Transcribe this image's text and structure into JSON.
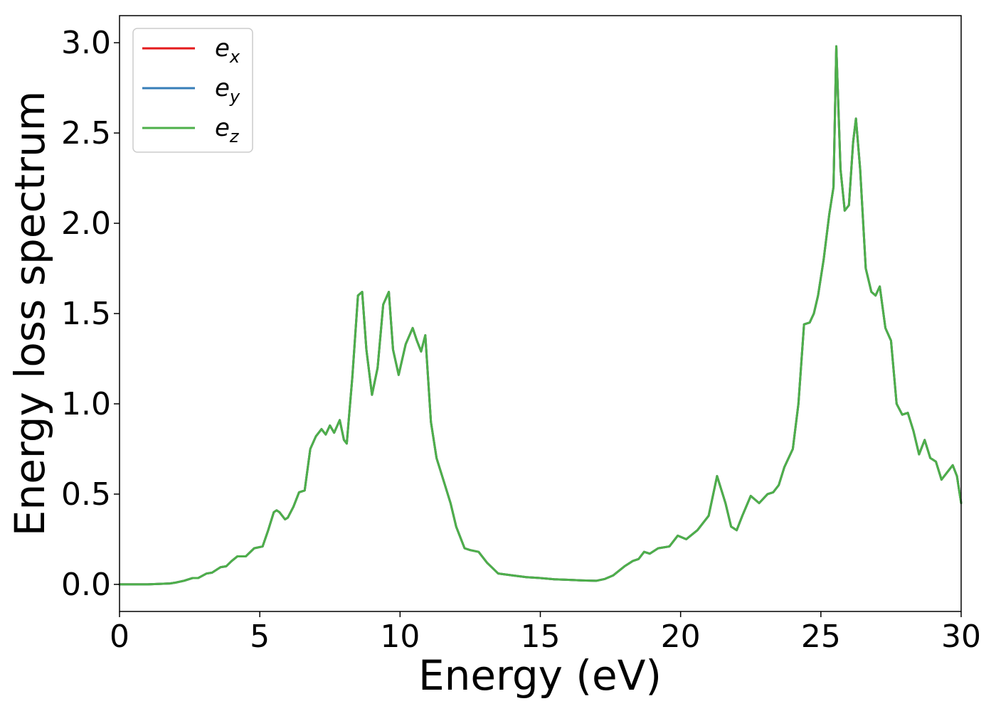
{
  "chart_data": {
    "type": "line",
    "xlabel": "Energy (eV)",
    "ylabel": "Energy loss spectrum",
    "xlim": [
      0,
      30
    ],
    "ylim": [
      -0.15,
      3.15
    ],
    "xticks": [
      0,
      5,
      10,
      15,
      20,
      25,
      30
    ],
    "yticks": [
      0.0,
      0.5,
      1.0,
      1.5,
      2.0,
      2.5,
      3.0
    ],
    "xtick_labels": [
      "0",
      "5",
      "10",
      "15",
      "20",
      "25",
      "30"
    ],
    "ytick_labels": [
      "0.0",
      "0.5",
      "1.0",
      "1.5",
      "2.0",
      "2.5",
      "3.0"
    ],
    "grid": false,
    "legend_position": "upper-left",
    "series": [
      {
        "name": "e_x",
        "label_base": "e",
        "label_sub": "x",
        "color": "#e41a1c"
      },
      {
        "name": "e_y",
        "label_base": "e",
        "label_sub": "y",
        "color": "#377eb8"
      },
      {
        "name": "e_z",
        "label_base": "e",
        "label_sub": "z",
        "color": "#4daf4a"
      }
    ],
    "x": [
      0,
      1,
      1.8,
      2.0,
      2.3,
      2.6,
      2.8,
      3.1,
      3.3,
      3.6,
      3.8,
      4.0,
      4.2,
      4.5,
      4.8,
      5.1,
      5.3,
      5.5,
      5.6,
      5.7,
      5.9,
      6.0,
      6.2,
      6.4,
      6.6,
      6.8,
      7.0,
      7.2,
      7.35,
      7.5,
      7.65,
      7.85,
      8.0,
      8.1,
      8.3,
      8.5,
      8.65,
      8.8,
      9.0,
      9.2,
      9.4,
      9.6,
      9.75,
      9.95,
      10.2,
      10.45,
      10.6,
      10.75,
      10.9,
      11.1,
      11.3,
      11.6,
      11.8,
      12.0,
      12.3,
      12.5,
      12.8,
      13.1,
      13.5,
      14.0,
      14.5,
      15.0,
      15.5,
      16.0,
      16.5,
      17.0,
      17.3,
      17.6,
      18.0,
      18.3,
      18.5,
      18.7,
      18.9,
      19.2,
      19.6,
      19.9,
      20.2,
      20.6,
      21.0,
      21.3,
      21.6,
      21.8,
      22.0,
      22.2,
      22.5,
      22.8,
      23.1,
      23.3,
      23.5,
      23.7,
      24.0,
      24.2,
      24.4,
      24.6,
      24.75,
      24.9,
      25.1,
      25.3,
      25.45,
      25.55,
      25.7,
      25.85,
      26.0,
      26.15,
      26.25,
      26.4,
      26.6,
      26.8,
      26.95,
      27.1,
      27.3,
      27.5,
      27.7,
      27.9,
      28.1,
      28.3,
      28.5,
      28.7,
      28.9,
      29.1,
      29.3,
      29.5,
      29.7,
      29.85,
      30.0
    ],
    "y": [
      0.0,
      0.0,
      0.005,
      0.01,
      0.02,
      0.035,
      0.035,
      0.06,
      0.065,
      0.095,
      0.1,
      0.13,
      0.155,
      0.155,
      0.2,
      0.21,
      0.3,
      0.4,
      0.41,
      0.4,
      0.36,
      0.37,
      0.43,
      0.51,
      0.52,
      0.75,
      0.82,
      0.86,
      0.83,
      0.88,
      0.84,
      0.91,
      0.8,
      0.78,
      1.15,
      1.6,
      1.62,
      1.3,
      1.05,
      1.2,
      1.55,
      1.62,
      1.3,
      1.16,
      1.33,
      1.42,
      1.35,
      1.29,
      1.38,
      0.9,
      0.7,
      0.55,
      0.45,
      0.32,
      0.2,
      0.19,
      0.18,
      0.12,
      0.06,
      0.05,
      0.04,
      0.035,
      0.028,
      0.025,
      0.022,
      0.02,
      0.03,
      0.05,
      0.1,
      0.13,
      0.14,
      0.18,
      0.17,
      0.2,
      0.21,
      0.27,
      0.25,
      0.3,
      0.38,
      0.6,
      0.45,
      0.32,
      0.3,
      0.38,
      0.49,
      0.45,
      0.5,
      0.51,
      0.55,
      0.65,
      0.75,
      1.0,
      1.44,
      1.45,
      1.5,
      1.6,
      1.8,
      2.05,
      2.2,
      2.98,
      2.3,
      2.07,
      2.1,
      2.45,
      2.58,
      2.3,
      1.75,
      1.62,
      1.6,
      1.65,
      1.42,
      1.35,
      1.0,
      0.94,
      0.95,
      0.85,
      0.72,
      0.8,
      0.7,
      0.68,
      0.58,
      0.62,
      0.66,
      0.6,
      0.45
    ]
  }
}
